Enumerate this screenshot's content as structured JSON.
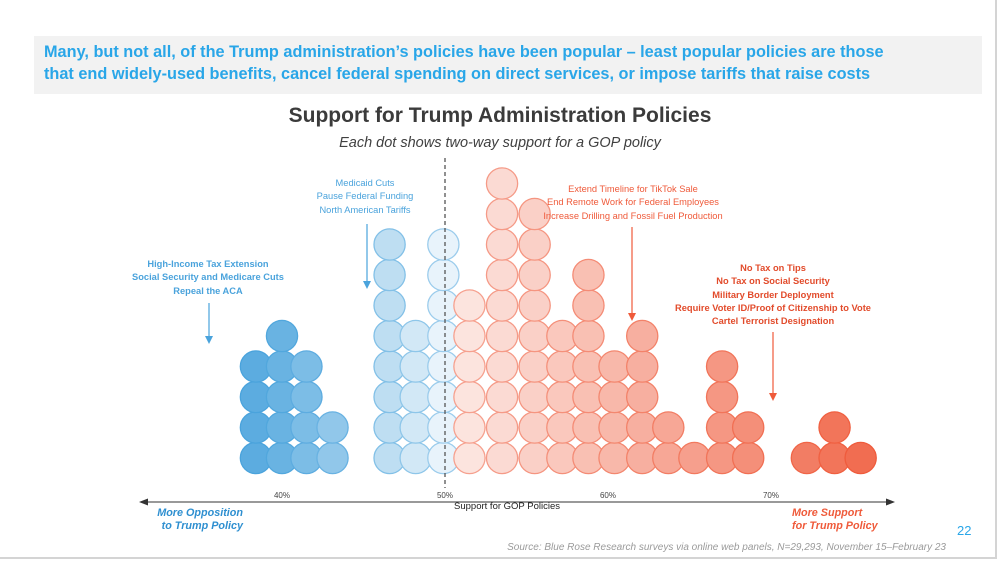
{
  "headline": {
    "line1": "Many, but not all, of the Trump administration’s policies have been popular – least popular policies are those",
    "line2": "that end widely-used benefits, cancel federal spending on direct services, or impose tariffs that raise costs"
  },
  "annotations": {
    "left_bold": [
      "High-Income Tax Extension",
      "Social Security and Medicare Cuts",
      "Repeal the ACA"
    ],
    "left_light": [
      "Medicaid Cuts",
      "Pause Federal Funding",
      "North American Tariffs"
    ],
    "center_right": [
      "Extend Timeline for TikTok Sale",
      "End Remote Work for Federal Employees",
      "Increase Drilling and Fossil Fuel Production"
    ],
    "right_bold": [
      "No Tax on Tips",
      "No Tax on Social Security",
      "Military Border Deployment",
      "Require Voter ID/Proof of Citizenship to Vote",
      "Cartel Terrorist Designation"
    ]
  },
  "edge_labels": {
    "left_line1": "More Opposition",
    "left_line2": "to Trump Policy",
    "right_line1": "More Support",
    "right_line2": "for Trump Policy"
  },
  "page_number": "22",
  "source": "Source: Blue Rose Research surveys via online web panels, N=29,293, November 15–February 23",
  "colors": {
    "headline_text": "#29a6e8",
    "headline_bg": "#f2f2f2",
    "opposition": "#4aa3dc",
    "support": "#ef5a3a"
  },
  "chart_data": {
    "type": "dot-histogram",
    "title": "Support for Trump Administration Policies",
    "subtitle": "Each dot shows two-way support for a GOP policy",
    "xlabel": "Support for GOP Policies",
    "xlim": [
      31.5,
      77.5
    ],
    "xticks": [
      40,
      50,
      60,
      70
    ],
    "xtick_labels": [
      "40%",
      "50%",
      "60%",
      "70%"
    ],
    "midline": 50,
    "bin_width": 1.65,
    "bins": [
      {
        "x": 38.4,
        "count": 4
      },
      {
        "x": 40.0,
        "count": 5
      },
      {
        "x": 41.5,
        "count": 4
      },
      {
        "x": 43.1,
        "count": 2
      },
      {
        "x": 46.6,
        "count": 8
      },
      {
        "x": 48.2,
        "count": 5
      },
      {
        "x": 49.9,
        "count": 8
      },
      {
        "x": 51.5,
        "count": 6
      },
      {
        "x": 53.5,
        "count": 10
      },
      {
        "x": 55.5,
        "count": 9
      },
      {
        "x": 57.2,
        "count": 5
      },
      {
        "x": 58.8,
        "count": 7
      },
      {
        "x": 60.4,
        "count": 4
      },
      {
        "x": 62.1,
        "count": 5
      },
      {
        "x": 63.7,
        "count": 2
      },
      {
        "x": 65.3,
        "count": 1
      },
      {
        "x": 67.0,
        "count": 4
      },
      {
        "x": 68.6,
        "count": 2
      },
      {
        "x": 72.2,
        "count": 1
      },
      {
        "x": 73.9,
        "count": 2
      },
      {
        "x": 75.5,
        "count": 1
      }
    ]
  }
}
